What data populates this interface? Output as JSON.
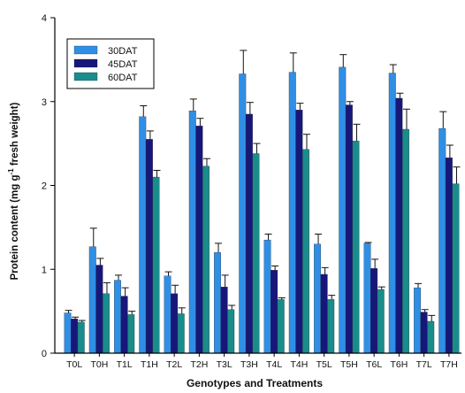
{
  "chart_data": {
    "type": "bar",
    "title": "",
    "xlabel": "Genotypes and Treatments",
    "ylabel_main": "Protein content (mg g",
    "ylabel_sup": "-1",
    "ylabel_tail": " fresh weight)",
    "ylim": [
      0,
      4
    ],
    "yticks": [
      0,
      1,
      2,
      3,
      4
    ],
    "grid": false,
    "legend_position": "top-left",
    "categories": [
      "T0L",
      "T0H",
      "T1L",
      "T1H",
      "T2L",
      "T2H",
      "T3L",
      "T3H",
      "T4L",
      "T4H",
      "T5L",
      "T5H",
      "T6L",
      "T6H",
      "T7L",
      "T7H"
    ],
    "series": [
      {
        "name": "30DAT",
        "color": "#2f8fe6",
        "values": [
          0.48,
          1.27,
          0.87,
          2.82,
          0.92,
          2.89,
          1.2,
          3.33,
          1.35,
          3.35,
          1.3,
          3.41,
          1.31,
          3.34,
          0.78,
          2.68
        ],
        "errors": [
          0.03,
          0.22,
          0.06,
          0.13,
          0.05,
          0.14,
          0.11,
          0.28,
          0.07,
          0.23,
          0.12,
          0.15,
          0.01,
          0.1,
          0.05,
          0.2
        ]
      },
      {
        "name": "45DAT",
        "color": "#17177a",
        "values": [
          0.41,
          1.05,
          0.68,
          2.55,
          0.71,
          2.71,
          0.79,
          2.85,
          0.99,
          2.9,
          0.94,
          2.96,
          1.01,
          3.04,
          0.49,
          2.33
        ],
        "errors": [
          0.02,
          0.08,
          0.1,
          0.1,
          0.1,
          0.09,
          0.14,
          0.14,
          0.05,
          0.08,
          0.08,
          0.04,
          0.11,
          0.06,
          0.03,
          0.15
        ]
      },
      {
        "name": "60DAT",
        "color": "#1a8c8c",
        "values": [
          0.37,
          0.71,
          0.46,
          2.1,
          0.47,
          2.23,
          0.52,
          2.38,
          0.64,
          2.43,
          0.64,
          2.53,
          0.76,
          2.67,
          0.38,
          2.02
        ],
        "errors": [
          0.02,
          0.13,
          0.04,
          0.08,
          0.07,
          0.09,
          0.05,
          0.12,
          0.02,
          0.18,
          0.05,
          0.2,
          0.03,
          0.24,
          0.07,
          0.2
        ]
      }
    ]
  }
}
